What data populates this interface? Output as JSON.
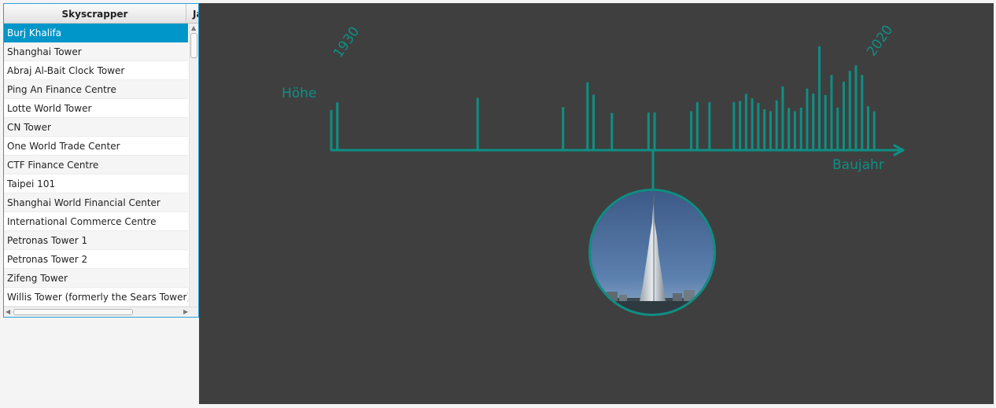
{
  "table": {
    "columns": [
      "Skyscrapper",
      "Jahr"
    ],
    "rows": [
      "Burj Khalifa",
      "Shanghai Tower",
      "Abraj Al-Bait Clock Tower",
      "Ping An Finance Centre",
      "Lotte World Tower",
      "CN Tower",
      "One World Trade Center",
      "CTF Finance Centre",
      "Taipei 101",
      "Shanghai World Financial Center",
      "International Commerce Centre",
      "Petronas Tower 1",
      "Petronas Tower 2",
      "Zifeng Tower",
      "Willis Tower (formerly the Sears Tower)"
    ],
    "selected_row": 0
  },
  "chart": {
    "y_label": "Höhe",
    "x_label": "Baujahr",
    "start_year_label": "1930",
    "end_year_label": "2020",
    "accent_color": "#0e8f84",
    "selected_image": "burj-khalifa-photo"
  },
  "chart_data": {
    "type": "bar",
    "title": "",
    "xlabel": "Baujahr",
    "ylabel": "Höhe",
    "xlim": [
      1930,
      2020
    ],
    "ylim": [
      0,
      828
    ],
    "selected_year": 2010,
    "x": [
      1930,
      1931,
      1954,
      1968,
      1972,
      1973,
      1976,
      1982,
      1983,
      1989,
      1990,
      1992,
      1996,
      1997,
      1998,
      1999,
      2000,
      2001,
      2002,
      2003,
      2004,
      2005,
      2006,
      2007,
      2008,
      2009,
      2010,
      2011,
      2012,
      2013,
      2014,
      2015,
      2016,
      2017,
      2018,
      2019
    ],
    "values": [
      319,
      381,
      417,
      344,
      541,
      442,
      296,
      300,
      300,
      311,
      383,
      383,
      383,
      392,
      449,
      413,
      376,
      327,
      311,
      398,
      508,
      336,
      311,
      339,
      492,
      452,
      828,
      440,
      601,
      339,
      546,
      632,
      676,
      600,
      350,
      310
    ]
  }
}
